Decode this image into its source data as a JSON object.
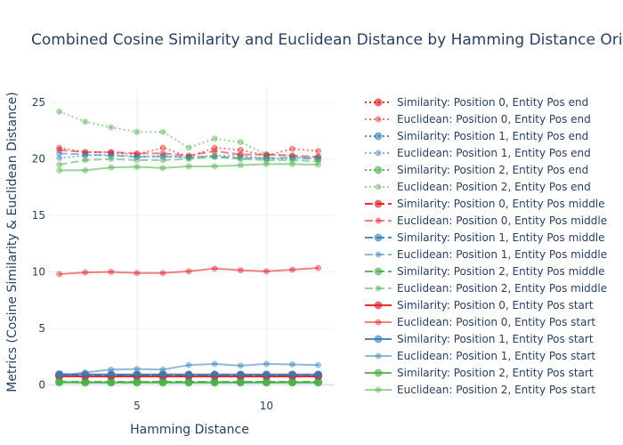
{
  "chart_data": {
    "type": "line",
    "title": "Combined Cosine Similarity and Euclidean Distance by Hamming Distance Ori",
    "xlabel": "Hamming Distance",
    "ylabel": "Metrics (Cosine Similarity & Euclidean Distance)",
    "xlim": [
      1.6,
      12.6
    ],
    "ylim": [
      -0.6,
      26.2
    ],
    "xticks": [
      5,
      10
    ],
    "yticks": [
      0,
      5,
      10,
      15,
      20,
      25
    ],
    "x": [
      2,
      3,
      4,
      5,
      6,
      7,
      8,
      9,
      10,
      11,
      12
    ],
    "legend_position": "right",
    "colors": {
      "red": "#e41a1c",
      "blue": "#377eb8",
      "green": "#4daf4a",
      "axis_text": "#2a3f5f",
      "grid": "#ebf0f8"
    },
    "series": [
      {
        "name": "Similarity: Position 0, Entity Pos end",
        "color": "#e41a1c",
        "dash": "dot",
        "light": false,
        "values": [
          0.85,
          0.84,
          0.85,
          0.84,
          0.83,
          0.84,
          0.84,
          0.83,
          0.84,
          0.84,
          0.84
        ]
      },
      {
        "name": "Euclidean: Position 0, Entity Pos end",
        "color": "#e41a1c",
        "dash": "dot",
        "light": true,
        "values": [
          21.0,
          20.6,
          20.6,
          20.4,
          21.0,
          20.2,
          21.0,
          20.8,
          20.3,
          20.9,
          20.7
        ]
      },
      {
        "name": "Similarity: Position 1, Entity Pos end",
        "color": "#377eb8",
        "dash": "dot",
        "light": false,
        "values": [
          0.82,
          0.84,
          0.84,
          0.83,
          0.83,
          0.84,
          0.84,
          0.84,
          0.83,
          0.84,
          0.83
        ]
      },
      {
        "name": "Euclidean: Position 1, Entity Pos end",
        "color": "#377eb8",
        "dash": "dot",
        "light": true,
        "values": [
          20.1,
          20.3,
          20.4,
          20.2,
          20.3,
          20.1,
          20.3,
          20.3,
          20.0,
          20.1,
          20.2
        ]
      },
      {
        "name": "Similarity: Position 2, Entity Pos end",
        "color": "#4daf4a",
        "dash": "dot",
        "light": false,
        "values": [
          0.25,
          0.24,
          0.24,
          0.24,
          0.25,
          0.24,
          0.24,
          0.24,
          0.24,
          0.24,
          0.24
        ]
      },
      {
        "name": "Euclidean: Position 2, Entity Pos end",
        "color": "#4daf4a",
        "dash": "dot",
        "light": true,
        "values": [
          24.2,
          23.3,
          22.8,
          22.4,
          22.4,
          21.0,
          21.8,
          21.5,
          20.4,
          20.3,
          20.0
        ]
      },
      {
        "name": "Similarity: Position 0, Entity Pos middle",
        "color": "#e41a1c",
        "dash": "dash",
        "light": false,
        "values": [
          0.86,
          0.85,
          0.85,
          0.85,
          0.85,
          0.85,
          0.85,
          0.85,
          0.85,
          0.85,
          0.85
        ]
      },
      {
        "name": "Euclidean: Position 0, Entity Pos middle",
        "color": "#e41a1c",
        "dash": "dash",
        "light": true,
        "values": [
          20.8,
          20.6,
          20.6,
          20.5,
          20.5,
          20.3,
          20.7,
          20.4,
          20.4,
          20.3,
          20.2
        ]
      },
      {
        "name": "Similarity: Position 1, Entity Pos middle",
        "color": "#377eb8",
        "dash": "dash",
        "light": false,
        "values": [
          0.87,
          0.86,
          0.87,
          0.87,
          0.86,
          0.86,
          0.86,
          0.86,
          0.86,
          0.86,
          0.86
        ]
      },
      {
        "name": "Euclidean: Position 1, Entity Pos middle",
        "color": "#377eb8",
        "dash": "dash",
        "light": true,
        "values": [
          20.5,
          20.4,
          20.3,
          20.2,
          20.2,
          20.2,
          20.2,
          20.1,
          20.1,
          20.1,
          20.0
        ]
      },
      {
        "name": "Similarity: Position 2, Entity Pos middle",
        "color": "#4daf4a",
        "dash": "dash",
        "light": false,
        "values": [
          0.28,
          0.27,
          0.27,
          0.27,
          0.27,
          0.27,
          0.27,
          0.27,
          0.27,
          0.27,
          0.27
        ]
      },
      {
        "name": "Euclidean: Position 2, Entity Pos middle",
        "color": "#4daf4a",
        "dash": "dash",
        "light": true,
        "values": [
          19.5,
          19.9,
          20.0,
          19.9,
          19.9,
          20.0,
          20.2,
          20.0,
          19.9,
          19.9,
          19.8
        ]
      },
      {
        "name": "Similarity: Position 0, Entity Pos start",
        "color": "#e41a1c",
        "dash": "solid",
        "light": false,
        "values": [
          0.75,
          0.74,
          0.74,
          0.74,
          0.74,
          0.74,
          0.74,
          0.74,
          0.74,
          0.74,
          0.74
        ]
      },
      {
        "name": "Euclidean: Position 0, Entity Pos start",
        "color": "#e41a1c",
        "dash": "solid",
        "light": true,
        "values": [
          9.8,
          9.95,
          10.0,
          9.9,
          9.9,
          10.05,
          10.3,
          10.15,
          10.05,
          10.2,
          10.35
        ]
      },
      {
        "name": "Similarity: Position 1, Entity Pos start",
        "color": "#377eb8",
        "dash": "solid",
        "light": false,
        "values": [
          0.95,
          0.93,
          0.92,
          0.92,
          0.93,
          0.92,
          0.92,
          0.92,
          0.92,
          0.92,
          0.92
        ]
      },
      {
        "name": "Euclidean: Position 1, Entity Pos start",
        "color": "#377eb8",
        "dash": "solid",
        "light": true,
        "values": [
          0.8,
          1.1,
          1.35,
          1.4,
          1.35,
          1.75,
          1.85,
          1.7,
          1.85,
          1.8,
          1.75
        ]
      },
      {
        "name": "Similarity: Position 2, Entity Pos start",
        "color": "#4daf4a",
        "dash": "solid",
        "light": false,
        "values": [
          0.22,
          0.2,
          0.2,
          0.2,
          0.2,
          0.2,
          0.2,
          0.2,
          0.2,
          0.2,
          0.2
        ]
      },
      {
        "name": "Euclidean: Position 2, Entity Pos start",
        "color": "#4daf4a",
        "dash": "solid",
        "light": true,
        "values": [
          19.0,
          19.0,
          19.25,
          19.3,
          19.2,
          19.35,
          19.35,
          19.45,
          19.55,
          19.55,
          19.5
        ]
      }
    ]
  }
}
